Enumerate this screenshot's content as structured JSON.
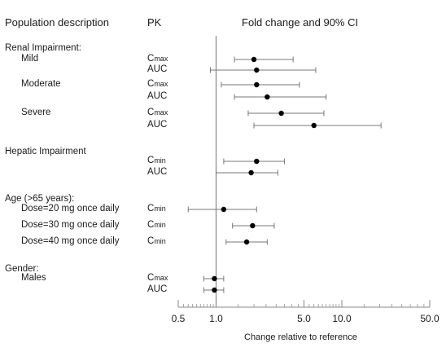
{
  "header": {
    "population": "Population description",
    "pk": "PK",
    "plot": "Fold change and 90% CI"
  },
  "rows": [
    {
      "label": "Renal Impairment:",
      "indent": false,
      "pk": "",
      "pk_sub": ""
    },
    {
      "label": "Mild",
      "indent": true,
      "pk": "C",
      "pk_sub": "max"
    },
    {
      "label": "",
      "indent": false,
      "pk": "AUC",
      "pk_sub": ""
    },
    {
      "label": "Moderate",
      "indent": true,
      "pk": "C",
      "pk_sub": "max"
    },
    {
      "label": "",
      "indent": false,
      "pk": "AUC",
      "pk_sub": ""
    },
    {
      "label": "Severe",
      "indent": true,
      "pk": "C",
      "pk_sub": "max"
    },
    {
      "label": "",
      "indent": false,
      "pk": "AUC",
      "pk_sub": ""
    },
    {
      "label": "Hepatic Impairment",
      "indent": false,
      "pk": "",
      "pk_sub": ""
    },
    {
      "label": "",
      "indent": false,
      "pk": "C",
      "pk_sub": "min"
    },
    {
      "label": "",
      "indent": false,
      "pk": "AUC",
      "pk_sub": ""
    },
    {
      "label": "Age (>65 years):",
      "indent": false,
      "pk": "",
      "pk_sub": ""
    },
    {
      "label": "Dose=20 mg once daily",
      "indent": true,
      "pk": "C",
      "pk_sub": "min"
    },
    {
      "label": "Dose=30 mg once daily",
      "indent": true,
      "pk": "C",
      "pk_sub": "min"
    },
    {
      "label": "Dose=40 mg once daily",
      "indent": true,
      "pk": "C",
      "pk_sub": "min"
    },
    {
      "label": "Gender:",
      "indent": false,
      "pk": "",
      "pk_sub": ""
    },
    {
      "label": "Males",
      "indent": true,
      "pk": "C",
      "pk_sub": "max"
    },
    {
      "label": "",
      "indent": false,
      "pk": "AUC",
      "pk_sub": ""
    }
  ],
  "chart_data": {
    "type": "scatter",
    "title": "Fold change and 90% CI",
    "xlabel": "Change relative to reference",
    "ylabel": "",
    "xscale": "log",
    "xlim": [
      0.5,
      50
    ],
    "reference_line": 1.0,
    "xticks": [
      0.5,
      1.0,
      5.0,
      10.0,
      50.0
    ],
    "xtick_labels": [
      "0.5",
      "1.0",
      "5.0",
      "10.0",
      "50.0"
    ],
    "estimates": [
      {
        "group": "Renal Impairment: Mild",
        "pk": "Cmax",
        "point": 2.0,
        "ci": [
          1.4,
          4.1
        ]
      },
      {
        "group": "Renal Impairment: Mild",
        "pk": "AUC",
        "point": 2.1,
        "ci": [
          0.9,
          6.2
        ]
      },
      {
        "group": "Renal Impairment: Moderate",
        "pk": "Cmax",
        "point": 2.1,
        "ci": [
          1.1,
          4.6
        ]
      },
      {
        "group": "Renal Impairment: Moderate",
        "pk": "AUC",
        "point": 2.55,
        "ci": [
          1.4,
          7.5
        ]
      },
      {
        "group": "Renal Impairment: Severe",
        "pk": "Cmax",
        "point": 3.3,
        "ci": [
          1.8,
          7.2
        ]
      },
      {
        "group": "Renal Impairment: Severe",
        "pk": "AUC",
        "point": 6.0,
        "ci": [
          2.0,
          20.5
        ]
      },
      {
        "group": "Hepatic Impairment",
        "pk": "Cmin",
        "point": 2.1,
        "ci": [
          1.15,
          3.5
        ]
      },
      {
        "group": "Hepatic Impairment",
        "pk": "AUC",
        "point": 1.9,
        "ci": [
          1.0,
          3.1
        ]
      },
      {
        "group": "Age (>65 years): Dose=20 mg once daily",
        "pk": "Cmin",
        "point": 1.15,
        "ci": [
          0.6,
          2.1
        ]
      },
      {
        "group": "Age (>65 years): Dose=30 mg once daily",
        "pk": "Cmin",
        "point": 1.95,
        "ci": [
          1.35,
          2.9
        ]
      },
      {
        "group": "Age (>65 years): Dose=40 mg once daily",
        "pk": "Cmin",
        "point": 1.75,
        "ci": [
          1.2,
          2.55
        ]
      },
      {
        "group": "Gender: Males",
        "pk": "Cmax",
        "point": 0.97,
        "ci": [
          0.8,
          1.15
        ]
      },
      {
        "group": "Gender: Males",
        "pk": "AUC",
        "point": 0.97,
        "ci": [
          0.8,
          1.15
        ]
      }
    ],
    "grid": false,
    "legend": "none"
  },
  "colors": {
    "text": "#1a1a1a",
    "axis": "#888888",
    "marker": "#000000",
    "ci_line": "#777777"
  }
}
